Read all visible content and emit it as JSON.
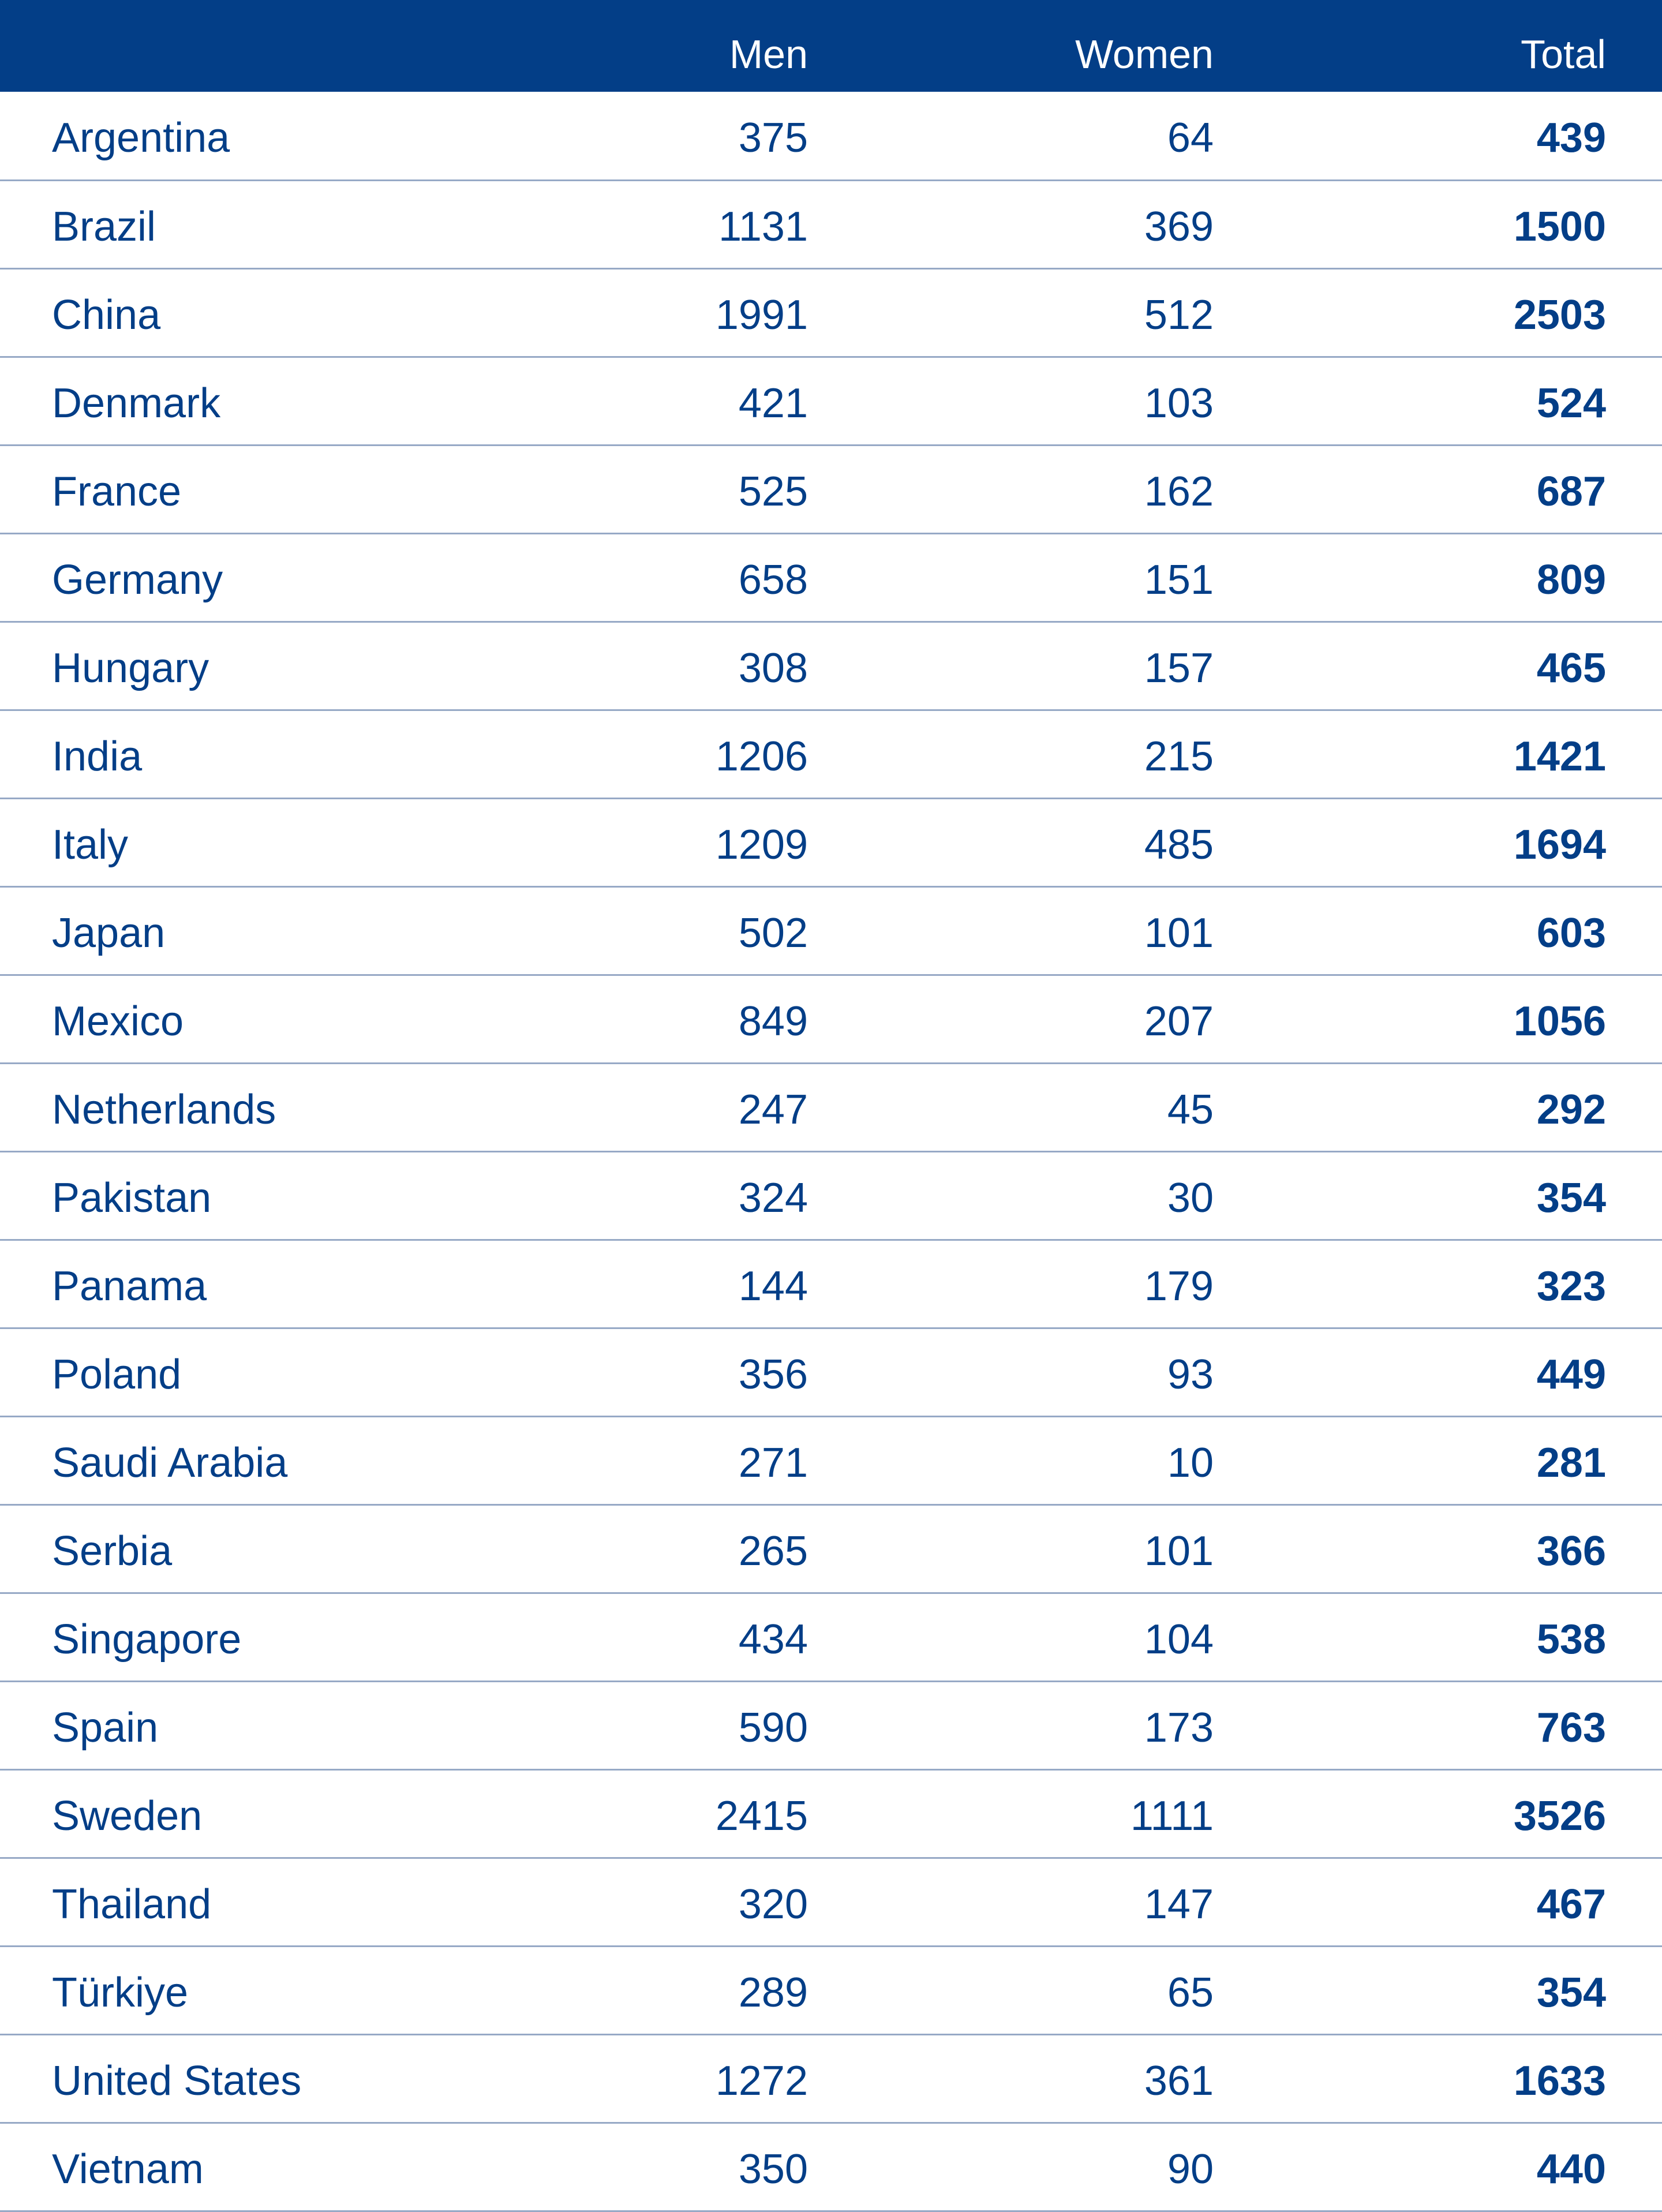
{
  "colors": {
    "header_bg": "#033e87",
    "text": "#033e87",
    "divider": "#97a9c6"
  },
  "table": {
    "columns": [
      "",
      "Men",
      "Women",
      "Total"
    ],
    "rows": [
      {
        "country": "Argentina",
        "men": "375",
        "women": "64",
        "total": "439"
      },
      {
        "country": "Brazil",
        "men": "1131",
        "women": "369",
        "total": "1500"
      },
      {
        "country": "China",
        "men": "1991",
        "women": "512",
        "total": "2503"
      },
      {
        "country": "Denmark",
        "men": "421",
        "women": "103",
        "total": "524"
      },
      {
        "country": "France",
        "men": "525",
        "women": "162",
        "total": "687"
      },
      {
        "country": "Germany",
        "men": "658",
        "women": "151",
        "total": "809"
      },
      {
        "country": "Hungary",
        "men": "308",
        "women": "157",
        "total": "465"
      },
      {
        "country": "India",
        "men": "1206",
        "women": "215",
        "total": "1421"
      },
      {
        "country": "Italy",
        "men": "1209",
        "women": "485",
        "total": "1694"
      },
      {
        "country": "Japan",
        "men": "502",
        "women": "101",
        "total": "603"
      },
      {
        "country": "Mexico",
        "men": "849",
        "women": "207",
        "total": "1056"
      },
      {
        "country": "Netherlands",
        "men": "247",
        "women": "45",
        "total": "292"
      },
      {
        "country": "Pakistan",
        "men": "324",
        "women": "30",
        "total": "354"
      },
      {
        "country": "Panama",
        "men": "144",
        "women": "179",
        "total": "323"
      },
      {
        "country": "Poland",
        "men": "356",
        "women": "93",
        "total": "449"
      },
      {
        "country": "Saudi Arabia",
        "men": "271",
        "women": "10",
        "total": "281"
      },
      {
        "country": "Serbia",
        "men": "265",
        "women": "101",
        "total": "366"
      },
      {
        "country": "Singapore",
        "men": "434",
        "women": "104",
        "total": "538"
      },
      {
        "country": "Spain",
        "men": "590",
        "women": "173",
        "total": "763"
      },
      {
        "country": "Sweden",
        "men": "2415",
        "women": "1111",
        "total": "3526"
      },
      {
        "country": "Thailand",
        "men": "320",
        "women": "147",
        "total": "467"
      },
      {
        "country": "Türkiye",
        "men": "289",
        "women": "65",
        "total": "354"
      },
      {
        "country": "United States",
        "men": "1272",
        "women": "361",
        "total": "1633"
      },
      {
        "country": "Vietnam",
        "men": "350",
        "women": "90",
        "total": "440"
      }
    ]
  }
}
